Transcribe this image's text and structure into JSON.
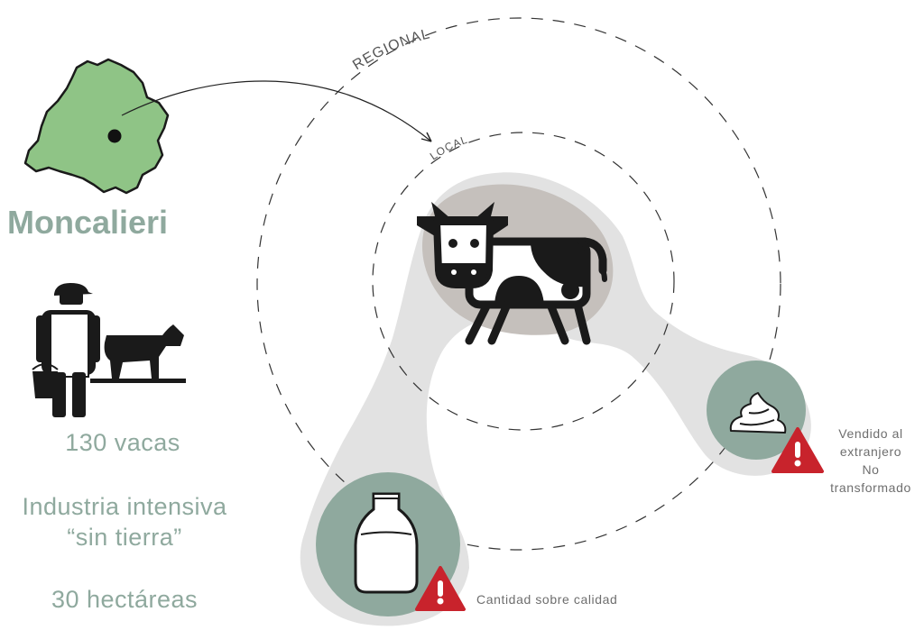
{
  "city": {
    "name": "Moncalieri"
  },
  "stats": {
    "cows": "130 vacas",
    "industry_line1": "Industria intensiva",
    "industry_line2": "“sin tierra”",
    "hectares": "30 hectáreas"
  },
  "rings": {
    "regional": "REGIONAL",
    "local": "LOCAL"
  },
  "notes": {
    "sold_line1": "Vendido al",
    "sold_line2": "extranjero",
    "sold_line3": "No",
    "sold_line4": "transformado",
    "quantity": "Cantidad sobre calidad"
  },
  "icons": {
    "region_map": "region-map-icon",
    "farmer": "farmer-with-cow-icon",
    "cow": "cow-icon",
    "milk": "milk-bottle-icon",
    "cream": "whipped-cream-icon",
    "warning": "warning-triangle-icon"
  },
  "colors": {
    "map_green": "#8fc486",
    "accent_sage": "#8fa99e",
    "blob_light": "#e2e2e2",
    "blob_dark": "#c4c0bd",
    "warning_red": "#c8232c",
    "dash": "#333333"
  }
}
